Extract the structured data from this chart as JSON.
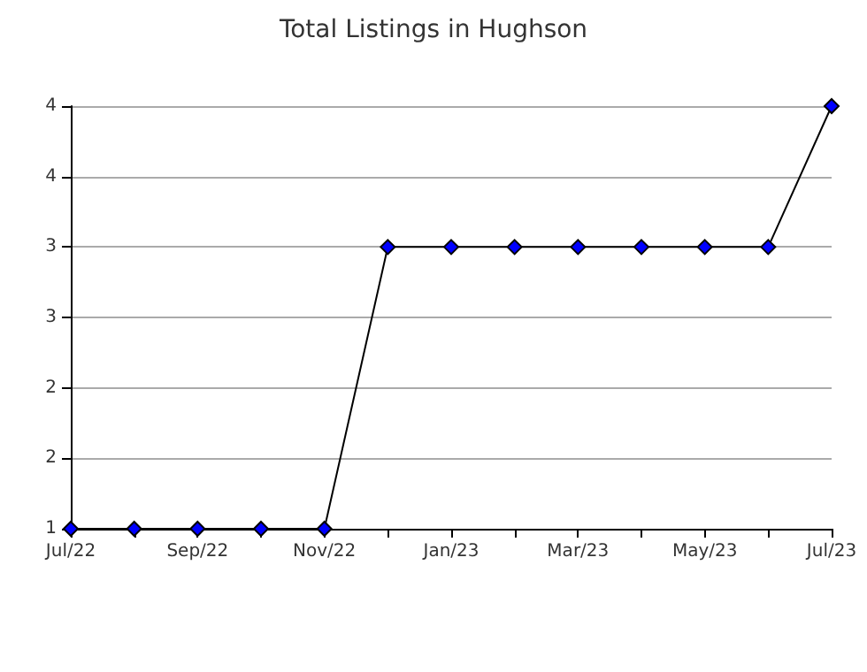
{
  "chart_data": {
    "type": "line",
    "title": "Total Listings in Hughson",
    "categories": [
      "Jul/22",
      null,
      "Sep/22",
      null,
      "Nov/22",
      null,
      "Jan/23",
      null,
      "Mar/23",
      null,
      "May/23",
      null,
      "Jul/23"
    ],
    "series": [
      {
        "color": "#0000ff",
        "values": [
          1,
          1,
          1,
          1,
          1,
          3,
          3,
          3,
          3,
          3,
          3,
          3,
          4
        ]
      }
    ],
    "ylim": [
      1,
      4
    ],
    "yticks": [
      {
        "value": 1,
        "label": "1"
      },
      {
        "value": 1.5,
        "label": "2"
      },
      {
        "value": 2,
        "label": "2"
      },
      {
        "value": 2.5,
        "label": "3"
      },
      {
        "value": 3,
        "label": "3"
      },
      {
        "value": 3.5,
        "label": "4"
      },
      {
        "value": 4,
        "label": "4"
      }
    ],
    "grid": "y",
    "marker": "diamond",
    "line_style": "solid"
  }
}
